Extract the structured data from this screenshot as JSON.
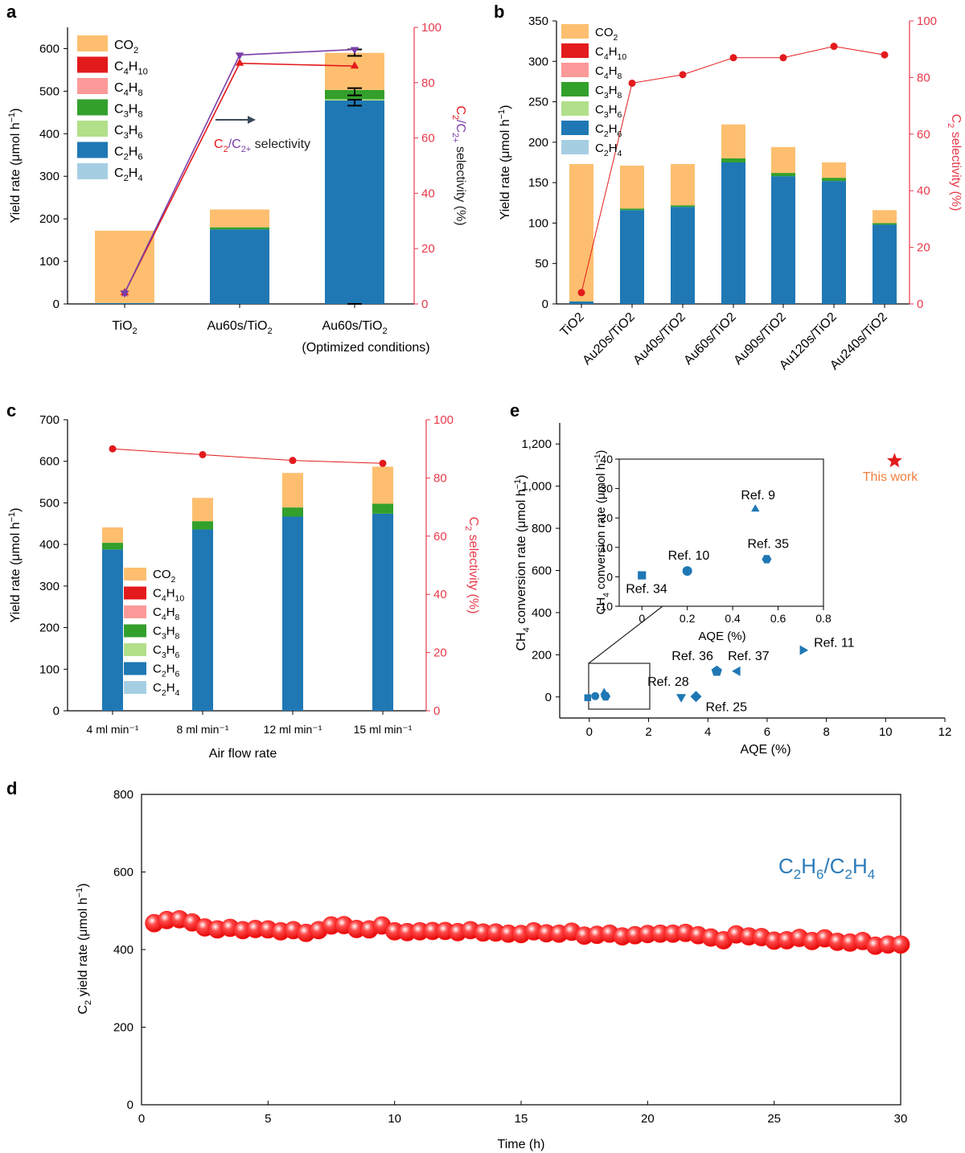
{
  "colors": {
    "CO2": "#fdbf6f",
    "C4H10": "#e31a1c",
    "C4H8": "#fb9a99",
    "C3H8": "#33a02c",
    "C3H6": "#b2df8a",
    "C2H6": "#1f78b4",
    "C2H4": "#a6cee3",
    "sel_red": "#e31a1c",
    "sel_purple": "#7b3fa8",
    "axis_red": "#e8394a",
    "ref_blue": "#1f78b4",
    "star": "#e31a1c",
    "this_work": "#f07f3c",
    "d_marker": "#ff1a1a",
    "d_label": "#2b7bb9"
  },
  "legend": [
    {
      "key": "CO2",
      "base": "CO",
      "sub": "2"
    },
    {
      "key": "C4H10",
      "base": "C",
      "sub": "4",
      "base2": "H",
      "sub2": "10"
    },
    {
      "key": "C4H8",
      "base": "C",
      "sub": "4",
      "base2": "H",
      "sub2": "8"
    },
    {
      "key": "C3H8",
      "base": "C",
      "sub": "3",
      "base2": "H",
      "sub2": "8"
    },
    {
      "key": "C3H6",
      "base": "C",
      "sub": "3",
      "base2": "H",
      "sub2": "6"
    },
    {
      "key": "C2H6",
      "base": "C",
      "sub": "2",
      "base2": "H",
      "sub2": "6"
    },
    {
      "key": "C2H4",
      "base": "C",
      "sub": "2",
      "base2": "H",
      "sub2": "4"
    }
  ],
  "chart_data": [
    {
      "panel": "a",
      "type": "bar",
      "categories": [
        "TiO2",
        "Au60s/TiO2",
        "Au60s/TiO2"
      ],
      "category_note": "(Optimized conditions)",
      "stack_order": [
        "C2H4",
        "C2H6",
        "C3H6",
        "C3H8",
        "C4H8",
        "C4H10",
        "CO2"
      ],
      "series": [
        {
          "name": "C2H4",
          "values": [
            0,
            0,
            0
          ]
        },
        {
          "name": "C2H6",
          "values": [
            2,
            175,
            478
          ]
        },
        {
          "name": "C3H6",
          "values": [
            0,
            0,
            3
          ]
        },
        {
          "name": "C3H8",
          "values": [
            0,
            5,
            22
          ]
        },
        {
          "name": "C4H8",
          "values": [
            0,
            0,
            0
          ]
        },
        {
          "name": "C4H10",
          "values": [
            0,
            0,
            0
          ]
        },
        {
          "name": "CO2",
          "values": [
            170,
            42,
            87
          ]
        }
      ],
      "selectivity_C2": [
        4,
        87,
        86
      ],
      "selectivity_C2plus": [
        4,
        90,
        92
      ],
      "ylabel": "Yield rate (μmol h⁻¹)",
      "y2label": "C2/C2+ selectivity (%)",
      "ylim": [
        0,
        650
      ],
      "y2lim": [
        0,
        100
      ],
      "yticks": [
        0,
        100,
        200,
        300,
        400,
        500,
        600
      ],
      "y2ticks": [
        0,
        20,
        40,
        60,
        80,
        100
      ],
      "annotation": "C2/C2+ selectivity"
    },
    {
      "panel": "b",
      "type": "bar",
      "categories": [
        "TiO2",
        "Au20s/TiO2",
        "Au40s/TiO2",
        "Au60s/TiO2",
        "Au90s/TiO2",
        "Au120s/TiO2",
        "Au240s/TiO2"
      ],
      "series": [
        {
          "name": "C2H4",
          "values": [
            0,
            0,
            0,
            0,
            0,
            0,
            0
          ]
        },
        {
          "name": "C2H6",
          "values": [
            3,
            116,
            120,
            175,
            158,
            152,
            98
          ]
        },
        {
          "name": "C3H6",
          "values": [
            0,
            0,
            0,
            0,
            0,
            0,
            0
          ]
        },
        {
          "name": "C3H8",
          "values": [
            0,
            2,
            2,
            5,
            4,
            4,
            2
          ]
        },
        {
          "name": "C4H8",
          "values": [
            0,
            0,
            0,
            0,
            0,
            0,
            0
          ]
        },
        {
          "name": "C4H10",
          "values": [
            0,
            0,
            0,
            0,
            0,
            0,
            0
          ]
        },
        {
          "name": "CO2",
          "values": [
            170,
            53,
            51,
            42,
            32,
            19,
            16
          ]
        }
      ],
      "selectivity_C2": [
        4,
        78,
        81,
        87,
        87,
        91,
        88
      ],
      "ylabel": "Yield rate (μmol h⁻¹)",
      "y2label": "C2 selectivity (%)",
      "ylim": [
        0,
        350
      ],
      "y2lim": [
        0,
        100
      ],
      "yticks": [
        0,
        50,
        100,
        150,
        200,
        250,
        300,
        350
      ],
      "y2ticks": [
        0,
        20,
        40,
        60,
        80,
        100
      ]
    },
    {
      "panel": "c",
      "type": "bar",
      "categories": [
        "4 ml min⁻¹",
        "8 ml min⁻¹",
        "12 ml min⁻¹",
        "15 ml min⁻¹"
      ],
      "series": [
        {
          "name": "C2H4",
          "values": [
            0,
            0,
            0,
            0
          ]
        },
        {
          "name": "C2H6",
          "values": [
            388,
            436,
            467,
            474
          ]
        },
        {
          "name": "C3H6",
          "values": [
            0,
            0,
            0,
            0
          ]
        },
        {
          "name": "C3H8",
          "values": [
            16,
            20,
            22,
            24
          ]
        },
        {
          "name": "C4H8",
          "values": [
            0,
            0,
            0,
            0
          ]
        },
        {
          "name": "C4H10",
          "values": [
            0,
            0,
            0,
            0
          ]
        },
        {
          "name": "CO2",
          "values": [
            37,
            56,
            83,
            89
          ]
        }
      ],
      "selectivity_C2": [
        90,
        88,
        86,
        85
      ],
      "xlabel": "Air flow rate",
      "ylabel": "Yield rate (μmol h⁻¹)",
      "y2label": "C2 selectivity (%)",
      "ylim": [
        0,
        700
      ],
      "y2lim": [
        0,
        100
      ],
      "yticks": [
        0,
        100,
        200,
        300,
        400,
        500,
        600,
        700
      ],
      "y2ticks": [
        0,
        20,
        40,
        60,
        80,
        100
      ]
    },
    {
      "panel": "e",
      "type": "scatter",
      "xlabel": "AQE (%)",
      "ylabel": "CH4 conversion rate (μmol h⁻¹)",
      "xlim": [
        -1,
        12
      ],
      "ylim": [
        -100,
        1300
      ],
      "xticks": [
        0,
        2,
        4,
        6,
        8,
        10,
        12
      ],
      "yticks": [
        0,
        200,
        400,
        600,
        800,
        1000,
        1200
      ],
      "ytick_labels": [
        "0",
        "200",
        "400",
        "600",
        "800",
        "1,000",
        "1,200"
      ],
      "points": [
        {
          "label": "Ref. 11",
          "x": 7.2,
          "y": 222,
          "marker": "triangle-right"
        },
        {
          "label": "Ref. 36",
          "x": 4.3,
          "y": 122,
          "marker": "pentagon"
        },
        {
          "label": "Ref. 37",
          "x": 5.0,
          "y": 122,
          "marker": "triangle-left"
        },
        {
          "label": "Ref. 28",
          "x": 3.1,
          "y": 0,
          "marker": "triangle-down"
        },
        {
          "label": "Ref. 25",
          "x": 3.6,
          "y": 2,
          "marker": "diamond"
        },
        {
          "label": "This work",
          "x": 10.3,
          "y": 1120,
          "marker": "star"
        }
      ],
      "inset": {
        "xlabel": "AQE (%)",
        "ylabel": "CH4 conversion rate (μmol h⁻¹)",
        "xlim": [
          -0.1,
          0.8
        ],
        "ylim": [
          -10,
          40
        ],
        "xticks": [
          0,
          0.2,
          0.4,
          0.6,
          0.8
        ],
        "xtick_labels": [
          "0",
          "0.2",
          "0.4",
          "0.6",
          "0.8"
        ],
        "yticks": [
          -10,
          0,
          10,
          20,
          30,
          40
        ],
        "points": [
          {
            "label": "Ref. 9",
            "x": 0.5,
            "y": 23,
            "marker": "triangle-up"
          },
          {
            "label": "Ref. 10",
            "x": 0.2,
            "y": 2,
            "marker": "circle"
          },
          {
            "label": "Ref. 35",
            "x": 0.55,
            "y": 6,
            "marker": "hexagon"
          },
          {
            "label": "Ref. 34",
            "x": 0,
            "y": 0.5,
            "marker": "square"
          }
        ]
      }
    },
    {
      "panel": "d",
      "type": "scatter",
      "xlabel": "Time (h)",
      "ylabel": "C2 yield rate (μmol h⁻¹)",
      "xlim": [
        0,
        30
      ],
      "ylim": [
        0,
        800
      ],
      "xticks": [
        0,
        5,
        10,
        15,
        20,
        25,
        30
      ],
      "yticks": [
        0,
        200,
        400,
        600,
        800
      ],
      "series_label": "C2H6/C2H4",
      "x": [
        0.5,
        1,
        1.5,
        2,
        2.5,
        3,
        3.5,
        4,
        4.5,
        5,
        5.5,
        6,
        6.5,
        7,
        7.5,
        8,
        8.5,
        9,
        9.5,
        10,
        10.5,
        11,
        11.5,
        12,
        12.5,
        13,
        13.5,
        14,
        14.5,
        15,
        15.5,
        16,
        16.5,
        17,
        17.5,
        18,
        18.5,
        19,
        19.5,
        20,
        20.5,
        21,
        21.5,
        22,
        22.5,
        23,
        23.5,
        24,
        24.5,
        25,
        25.5,
        26,
        26.5,
        27,
        27.5,
        28,
        28.5,
        29,
        29.5,
        30
      ],
      "y": [
        468,
        476,
        478,
        470,
        457,
        452,
        456,
        450,
        453,
        452,
        447,
        450,
        443,
        450,
        462,
        463,
        453,
        452,
        462,
        447,
        445,
        447,
        448,
        448,
        445,
        450,
        444,
        444,
        441,
        440,
        447,
        442,
        441,
        446,
        436,
        438,
        441,
        434,
        437,
        440,
        441,
        441,
        443,
        437,
        431,
        424,
        439,
        434,
        432,
        423,
        424,
        430,
        422,
        429,
        420,
        418,
        422,
        410,
        413,
        413
      ]
    }
  ],
  "panels": {
    "a": {
      "letter": "a",
      "cat1": "TiO",
      "cat1_sub": "2",
      "cat2": "Au60s/TiO",
      "cat2_sub": "2",
      "cat3": "Au60s/TiO",
      "cat3_sub": "2",
      "cat3_note": "(Optimized conditions)",
      "ylabel_pre": "Yield rate (μmol h",
      "ylabel_sup": "−1",
      "ylabel_post": ")",
      "y2_C": "C",
      "y2_sub1": "2",
      "y2_slash": "/C",
      "y2_sub2": "2+",
      "y2_rest": " selectivity (%)",
      "ann_C": "C",
      "ann_sub1": "2",
      "ann_slash": "/C",
      "ann_sub2": "2+",
      "ann_rest": " selectivity"
    },
    "b": {
      "letter": "b",
      "ylabel_pre": "Yield rate (μmol h",
      "ylabel_sup": "−1",
      "ylabel_post": ")",
      "y2_C": "C",
      "y2_sub": "2",
      "y2_rest": " selectivity (%)"
    },
    "c": {
      "letter": "c",
      "xlabel": "Air flow rate",
      "ylabel_pre": "Yield rate (μmol h",
      "ylabel_sup": "−1",
      "ylabel_post": ")",
      "y2_C": "C",
      "y2_sub": "2",
      "y2_rest": " selectivity (%)"
    },
    "d": {
      "letter": "d",
      "xlabel": "Time (h)",
      "ylabel_C": "C",
      "ylabel_sub": "2",
      "ylabel_rest": " yield rate (μmol h",
      "ylabel_sup": "−1",
      "ylabel_post": ")",
      "series_C": "C",
      "series_s1": "2",
      "series_H": "H",
      "series_s2": "6",
      "series_slash": "/C",
      "series_s3": "2",
      "series_H2": "H",
      "series_s4": "4"
    },
    "e": {
      "letter": "e",
      "xlabel": "AQE (%)",
      "ylabel_pre": "CH",
      "ylabel_sub": "4",
      "ylabel_mid": " conversion rate (μmol h",
      "ylabel_sup": "−1",
      "ylabel_post": ")",
      "inset_xlabel": "AQE (%)",
      "inset_ylabel_pre": "CH",
      "inset_ylabel_sub": "4",
      "inset_ylabel_mid": " conversion rate (μmol h",
      "inset_ylabel_sup": "−1",
      "inset_ylabel_post": ")",
      "this_work": "This work"
    }
  }
}
